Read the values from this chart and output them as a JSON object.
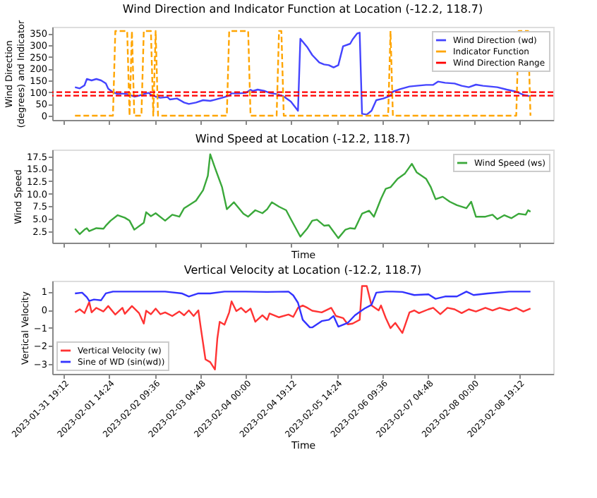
{
  "chart_data": [
    {
      "type": "line",
      "title": "Wind Direction and Indicator Function at Location (-12.2, 118.7)",
      "ylabel": "Wind Direction (degrees) and Indicator",
      "xlim": [
        "2023-01-31T14:24",
        "2023-02-09T09:36"
      ],
      "xticks": [
        {
          "value": "2023-01-31T19:12",
          "label": null
        },
        {
          "value": "2023-02-01T14:24",
          "label": null
        },
        {
          "value": "2023-02-02T09:36",
          "label": null
        },
        {
          "value": "2023-02-03T04:48",
          "label": null
        },
        {
          "value": "2023-02-04T00:00",
          "label": null
        },
        {
          "value": "2023-02-04T19:12",
          "label": null
        },
        {
          "value": "2023-02-05T14:24",
          "label": null
        },
        {
          "value": "2023-02-06T09:36",
          "label": null
        },
        {
          "value": "2023-02-07T04:48",
          "label": null
        },
        {
          "value": "2023-02-08T00:00",
          "label": null
        },
        {
          "value": "2023-02-08T19:12",
          "label": null
        }
      ],
      "ylim": [
        -18,
        378
      ],
      "yticks": [
        0,
        50,
        100,
        150,
        200,
        250,
        300,
        350
      ],
      "tick_labels": "y",
      "grid": false,
      "legend": "top right",
      "ref_lines": [
        {
          "axis": "y",
          "value": 85,
          "label": "Wind Direction Range",
          "color": "#ff0000",
          "line_style": "dashed"
        },
        {
          "axis": "y",
          "value": 100,
          "color": "#ff0000",
          "line_style": "dashed"
        }
      ],
      "series": [
        {
          "name": "Wind Direction (wd)",
          "color": "#4444ff",
          "line_style": "solid",
          "x": [
            "2023-02-01T00:00",
            "2023-02-01T02:00",
            "2023-02-01T04:00",
            "2023-02-01T05:00",
            "2023-02-01T07:00",
            "2023-02-01T09:00",
            "2023-02-01T11:00",
            "2023-02-01T13:00",
            "2023-02-01T14:00",
            "2023-02-01T16:00",
            "2023-02-01T18:00",
            "2023-02-01T20:00",
            "2023-02-01T22:00",
            "2023-02-01T23:00",
            "2023-02-02T01:00",
            "2023-02-02T03:00",
            "2023-02-02T05:00",
            "2023-02-02T07:00",
            "2023-02-02T08:00",
            "2023-02-02T10:00",
            "2023-02-02T12:00",
            "2023-02-02T15:00",
            "2023-02-02T16:00",
            "2023-02-02T19:00",
            "2023-02-02T22:00",
            "2023-02-03T00:00",
            "2023-02-03T03:00",
            "2023-02-03T06:00",
            "2023-02-03T09:00",
            "2023-02-03T11:00",
            "2023-02-03T14:00",
            "2023-02-03T17:00",
            "2023-02-03T18:00",
            "2023-02-03T21:00",
            "2023-02-04T00:00",
            "2023-02-04T02:00",
            "2023-02-04T03:00",
            "2023-02-04T05:00",
            "2023-02-04T08:00",
            "2023-02-04T10:00",
            "2023-02-04T13:00",
            "2023-02-04T16:00",
            "2023-02-04T19:00",
            "2023-02-04T22:00",
            "2023-02-04T23:00",
            "2023-02-05T02:00",
            "2023-02-05T04:00",
            "2023-02-05T07:00",
            "2023-02-05T09:00",
            "2023-02-05T11:00",
            "2023-02-05T13:00",
            "2023-02-05T15:00",
            "2023-02-05T17:00",
            "2023-02-05T20:00",
            "2023-02-05T21:00",
            "2023-02-05T23:00",
            "2023-02-06T00:00",
            "2023-02-06T01:00",
            "2023-02-06T03:00",
            "2023-02-06T05:00",
            "2023-02-06T07:00",
            "2023-02-06T10:00",
            "2023-02-06T13:00",
            "2023-02-06T14:00",
            "2023-02-06T17:00",
            "2023-02-06T21:00",
            "2023-02-07T00:00",
            "2023-02-07T04:00",
            "2023-02-07T07:00",
            "2023-02-07T09:00",
            "2023-02-07T12:00",
            "2023-02-07T16:00",
            "2023-02-07T19:00",
            "2023-02-07T22:00",
            "2023-02-08T01:00",
            "2023-02-08T04:00",
            "2023-02-08T07:00",
            "2023-02-08T10:00",
            "2023-02-08T14:00",
            "2023-02-08T18:00",
            "2023-02-08T21:00",
            "2023-02-09T00:00"
          ],
          "values": [
            121,
            116,
            129,
            156,
            150,
            156,
            150,
            137,
            115,
            100,
            92,
            94,
            92,
            89,
            81,
            85,
            92,
            97,
            89,
            81,
            76,
            79,
            69,
            73,
            56,
            50,
            56,
            66,
            63,
            68,
            76,
            85,
            95,
            95,
            97,
            110,
            105,
            111,
            105,
            97,
            92,
            82,
            60,
            21,
            327,
            290,
            258,
            226,
            218,
            215,
            205,
            215,
            295,
            306,
            324,
            350,
            353,
            8,
            5,
            21,
            66,
            73,
            85,
            102,
            113,
            124,
            127,
            131,
            131,
            145,
            140,
            137,
            127,
            121,
            132,
            127,
            124,
            121,
            111,
            102,
            89,
            82
          ]
        },
        {
          "name": "Indicator Function",
          "color": "#ffa500",
          "line_style": "dashed",
          "x": [
            "2023-02-01T00:00",
            "2023-02-01T16:00",
            "2023-02-01T17:00",
            "2023-02-01T22:00",
            "2023-02-01T23:00",
            "2023-02-02T00:00",
            "2023-02-02T01:00",
            "2023-02-02T04:00",
            "2023-02-02T05:00",
            "2023-02-02T08:00",
            "2023-02-02T09:00",
            "2023-02-02T10:00",
            "2023-02-02T11:00",
            "2023-02-03T16:00",
            "2023-02-03T17:00",
            "2023-02-04T01:00",
            "2023-02-04T02:00",
            "2023-02-04T13:00",
            "2023-02-04T14:00",
            "2023-02-04T15:00",
            "2023-02-04T16:00",
            "2023-02-06T12:00",
            "2023-02-06T13:00",
            "2023-02-06T14:00",
            "2023-02-08T18:00",
            "2023-02-08T19:00",
            "2023-02-08T23:00",
            "2023-02-09T00:00"
          ],
          "values": [
            0,
            0,
            360,
            360,
            0,
            360,
            0,
            0,
            360,
            360,
            0,
            360,
            0,
            0,
            360,
            360,
            0,
            0,
            360,
            360,
            0,
            0,
            360,
            0,
            0,
            360,
            360,
            0
          ]
        }
      ]
    },
    {
      "type": "line",
      "title": "Wind Speed at Location (-12.2, 118.7)",
      "xlabel": "Time",
      "ylabel": "Wind Speed",
      "xlim": [
        "2023-01-31T14:24",
        "2023-02-09T09:36"
      ],
      "xticks": [
        {
          "value": "2023-01-31T19:12",
          "label": null
        },
        {
          "value": "2023-02-01T14:24",
          "label": null
        },
        {
          "value": "2023-02-02T09:36",
          "label": null
        },
        {
          "value": "2023-02-03T04:48",
          "label": null
        },
        {
          "value": "2023-02-04T00:00",
          "label": null
        },
        {
          "value": "2023-02-04T19:12",
          "label": null
        },
        {
          "value": "2023-02-05T14:24",
          "label": null
        },
        {
          "value": "2023-02-06T09:36",
          "label": null
        },
        {
          "value": "2023-02-07T04:48",
          "label": null
        },
        {
          "value": "2023-02-08T00:00",
          "label": null
        },
        {
          "value": "2023-02-08T19:12",
          "label": null
        }
      ],
      "ylim": [
        0.2,
        18.85
      ],
      "yticks": [
        2.5,
        {
          "value": 5,
          "label": "5.0"
        },
        7.5,
        {
          "value": 10,
          "label": "10.0"
        },
        12.5,
        {
          "value": 15,
          "label": "15.0"
        },
        17.5
      ],
      "tick_labels": "y",
      "grid": false,
      "legend": "top right",
      "series": [
        {
          "name": "Wind Speed (ws)",
          "color": "#3aa83a",
          "line_style": "solid",
          "x": [
            "2023-02-01T00:00",
            "2023-02-01T02:00",
            "2023-02-01T04:00",
            "2023-02-01T05:00",
            "2023-02-01T06:00",
            "2023-02-01T09:00",
            "2023-02-01T12:00",
            "2023-02-01T13:00",
            "2023-02-01T15:00",
            "2023-02-01T18:00",
            "2023-02-01T21:00",
            "2023-02-01T23:00",
            "2023-02-02T01:00",
            "2023-02-02T05:00",
            "2023-02-02T06:00",
            "2023-02-02T08:00",
            "2023-02-02T10:00",
            "2023-02-02T14:00",
            "2023-02-02T17:00",
            "2023-02-02T20:00",
            "2023-02-02T22:00",
            "2023-02-03T00:00",
            "2023-02-03T03:00",
            "2023-02-03T06:00",
            "2023-02-03T08:00",
            "2023-02-03T09:00",
            "2023-02-03T11:00",
            "2023-02-03T14:00",
            "2023-02-03T16:00",
            "2023-02-03T19:00",
            "2023-02-03T23:00",
            "2023-02-04T01:00",
            "2023-02-04T04:00",
            "2023-02-04T07:00",
            "2023-02-04T09:00",
            "2023-02-04T11:00",
            "2023-02-04T14:00",
            "2023-02-04T17:00",
            "2023-02-04T19:00",
            "2023-02-04T23:00",
            "2023-02-05T02:00",
            "2023-02-05T04:00",
            "2023-02-05T06:00",
            "2023-02-05T09:00",
            "2023-02-05T11:00",
            "2023-02-05T15:00",
            "2023-02-05T18:00",
            "2023-02-05T20:00",
            "2023-02-05T22:00",
            "2023-02-06T01:00",
            "2023-02-06T04:00",
            "2023-02-06T06:00",
            "2023-02-06T09:00",
            "2023-02-06T11:00",
            "2023-02-06T13:00",
            "2023-02-06T16:00",
            "2023-02-06T19:00",
            "2023-02-06T22:00",
            "2023-02-07T00:00",
            "2023-02-07T04:00",
            "2023-02-07T06:00",
            "2023-02-07T08:00",
            "2023-02-07T11:00",
            "2023-02-07T14:00",
            "2023-02-07T17:00",
            "2023-02-07T21:00",
            "2023-02-07T23:00",
            "2023-02-08T01:00",
            "2023-02-08T05:00",
            "2023-02-08T08:00",
            "2023-02-08T10:00",
            "2023-02-08T13:00",
            "2023-02-08T16:00",
            "2023-02-08T19:00",
            "2023-02-08T22:00",
            "2023-02-08T23:00",
            "2023-02-09T00:00"
          ],
          "values": [
            3.0,
            1.9,
            2.8,
            3.1,
            2.5,
            3.1,
            3.0,
            3.6,
            4.6,
            5.7,
            5.2,
            4.6,
            2.8,
            4.2,
            6.3,
            5.5,
            6.1,
            4.6,
            5.8,
            5.4,
            7.1,
            7.7,
            8.6,
            10.7,
            13.6,
            17.9,
            15.2,
            11.3,
            6.9,
            8.3,
            6.0,
            5.4,
            6.7,
            6.1,
            6.9,
            8.3,
            7.4,
            6.7,
            4.9,
            1.4,
            3.1,
            4.6,
            4.8,
            3.6,
            3.7,
            1.1,
            2.8,
            3.1,
            3.0,
            6.0,
            6.6,
            5.4,
            9.0,
            11.0,
            11.3,
            13.0,
            14.0,
            16.0,
            14.3,
            13.0,
            11.3,
            8.9,
            9.4,
            8.4,
            7.7,
            7.1,
            8.4,
            5.4,
            5.4,
            5.8,
            4.9,
            5.7,
            5.1,
            6.0,
            5.8,
            6.7,
            6.4
          ]
        }
      ]
    },
    {
      "type": "line",
      "title": "Vertical Velocity at Location (-12.2, 118.7)",
      "xlabel": "Time",
      "ylabel": "Vertical Velocity",
      "xlim": [
        "2023-01-31T14:24",
        "2023-02-09T09:36"
      ],
      "xticks": [
        {
          "value": "2023-01-31T19:12",
          "label": "2023-01-31 19:12"
        },
        {
          "value": "2023-02-01T14:24",
          "label": "2023-02-01 14:24"
        },
        {
          "value": "2023-02-02T09:36",
          "label": "2023-02-02 09:36"
        },
        {
          "value": "2023-02-03T04:48",
          "label": "2023-02-03 04:48"
        },
        {
          "value": "2023-02-04T00:00",
          "label": "2023-02-04 00:00"
        },
        {
          "value": "2023-02-04T19:12",
          "label": "2023-02-04 19:12"
        },
        {
          "value": "2023-02-05T14:24",
          "label": "2023-02-05 14:24"
        },
        {
          "value": "2023-02-06T09:36",
          "label": "2023-02-06 09:36"
        },
        {
          "value": "2023-02-07T04:48",
          "label": "2023-02-07 04:48"
        },
        {
          "value": "2023-02-08T00:00",
          "label": "2023-02-08 00:00"
        },
        {
          "value": "2023-02-08T19:12",
          "label": "2023-02-08 19:12"
        }
      ],
      "ylim": [
        -3.55,
        1.6
      ],
      "yticks": [
        {
          "value": -3,
          "label": "−3"
        },
        {
          "value": -2,
          "label": "−2"
        },
        {
          "value": -1,
          "label": "−1"
        },
        0,
        1
      ],
      "grid": false,
      "legend": "bottom left",
      "series": [
        {
          "name": "Vertical Velocity (w)",
          "color": "#ff3333",
          "line_style": "solid",
          "x": [
            "2023-02-01T00:00",
            "2023-02-01T02:00",
            "2023-02-01T04:00",
            "2023-02-01T06:00",
            "2023-02-01T07:00",
            "2023-02-01T09:00",
            "2023-02-01T12:00",
            "2023-02-01T14:00",
            "2023-02-01T17:00",
            "2023-02-01T20:00",
            "2023-02-01T21:00",
            "2023-02-02T00:00",
            "2023-02-02T03:00",
            "2023-02-02T05:00",
            "2023-02-02T06:00",
            "2023-02-02T08:00",
            "2023-02-02T10:00",
            "2023-02-02T12:00",
            "2023-02-02T14:00",
            "2023-02-02T17:00",
            "2023-02-02T20:00",
            "2023-02-02T22:00",
            "2023-02-03T00:00",
            "2023-02-03T02:00",
            "2023-02-03T04:00",
            "2023-02-03T05:00",
            "2023-02-03T07:00",
            "2023-02-03T09:00",
            "2023-02-03T11:00",
            "2023-02-03T12:00",
            "2023-02-03T13:00",
            "2023-02-03T15:00",
            "2023-02-03T17:00",
            "2023-02-03T18:00",
            "2023-02-03T20:00",
            "2023-02-03T22:00",
            "2023-02-04T00:00",
            "2023-02-04T02:00",
            "2023-02-04T04:00",
            "2023-02-04T07:00",
            "2023-02-04T09:00",
            "2023-02-04T10:00",
            "2023-02-04T14:00",
            "2023-02-04T18:00",
            "2023-02-04T20:00",
            "2023-02-04T22:00",
            "2023-02-05T00:00",
            "2023-02-05T02:00",
            "2023-02-05T04:00",
            "2023-02-05T08:00",
            "2023-02-05T12:00",
            "2023-02-05T14:00",
            "2023-02-05T17:00",
            "2023-02-05T19:00",
            "2023-02-05T21:00",
            "2023-02-06T00:00",
            "2023-02-06T01:00",
            "2023-02-06T03:00",
            "2023-02-06T05:00",
            "2023-02-06T08:00",
            "2023-02-06T09:00",
            "2023-02-06T11:00",
            "2023-02-06T13:00",
            "2023-02-06T15:00",
            "2023-02-06T18:00",
            "2023-02-06T21:00",
            "2023-02-06T23:00",
            "2023-02-07T01:00",
            "2023-02-07T05:00",
            "2023-02-07T07:00",
            "2023-02-07T10:00",
            "2023-02-07T13:00",
            "2023-02-07T16:00",
            "2023-02-07T19:00",
            "2023-02-07T22:00",
            "2023-02-08T01:00",
            "2023-02-08T05:00",
            "2023-02-08T08:00",
            "2023-02-08T11:00",
            "2023-02-08T15:00",
            "2023-02-08T18:00",
            "2023-02-08T21:00",
            "2023-02-09T00:00"
          ],
          "values": [
            -0.15,
            0.02,
            -0.19,
            0.42,
            -0.15,
            0.1,
            -0.1,
            0.2,
            -0.27,
            0.1,
            -0.23,
            0.2,
            -0.19,
            -0.77,
            -0.06,
            -0.25,
            0.06,
            -0.25,
            -0.15,
            -0.35,
            -0.1,
            -0.31,
            -0.04,
            -0.35,
            -0.04,
            -0.98,
            -2.75,
            -2.9,
            -3.31,
            -1.6,
            -0.67,
            -0.83,
            -0.15,
            0.46,
            -0.08,
            0.1,
            -0.15,
            0.06,
            -0.67,
            -0.31,
            -0.56,
            -0.21,
            -0.42,
            -0.27,
            -0.4,
            0.1,
            0.23,
            0.1,
            -0.06,
            -0.15,
            0.1,
            -0.35,
            -0.46,
            -0.81,
            -0.77,
            -0.56,
            1.31,
            1.31,
            0.23,
            -0.04,
            0.23,
            -0.46,
            -1.02,
            -0.73,
            -1.29,
            -0.15,
            -0.04,
            -0.19,
            0.02,
            0.1,
            -0.25,
            0.1,
            0.02,
            -0.19,
            0.02,
            -0.1,
            0.1,
            -0.04,
            0.1,
            -0.04,
            0.1,
            -0.1,
            0.06
          ]
        },
        {
          "name": "Sine of WD (sin(wd))",
          "color": "#3333ff",
          "line_style": "solid",
          "x": [
            "2023-02-01T00:00",
            "2023-02-01T03:00",
            "2023-02-01T05:00",
            "2023-02-01T06:00",
            "2023-02-01T08:00",
            "2023-02-01T11:00",
            "2023-02-01T13:00",
            "2023-02-01T16:00",
            "2023-02-01T23:00",
            "2023-02-02T07:00",
            "2023-02-02T14:00",
            "2023-02-02T21:00",
            "2023-02-03T00:00",
            "2023-02-03T04:00",
            "2023-02-03T09:00",
            "2023-02-03T15:00",
            "2023-02-04T00:00",
            "2023-02-04T09:00",
            "2023-02-04T18:00",
            "2023-02-04T20:00",
            "2023-02-04T22:00",
            "2023-02-05T00:00",
            "2023-02-05T03:00",
            "2023-02-05T04:00",
            "2023-02-05T08:00",
            "2023-02-05T11:00",
            "2023-02-05T13:00",
            "2023-02-05T15:00",
            "2023-02-05T19:00",
            "2023-02-05T22:00",
            "2023-02-06T02:00",
            "2023-02-06T05:00",
            "2023-02-06T07:00",
            "2023-02-06T11:00",
            "2023-02-06T14:00",
            "2023-02-06T18:00",
            "2023-02-06T23:00",
            "2023-02-07T05:00",
            "2023-02-07T08:00",
            "2023-02-07T12:00",
            "2023-02-07T17:00",
            "2023-02-07T21:00",
            "2023-02-08T00:00",
            "2023-02-08T06:00",
            "2023-02-08T15:00",
            "2023-02-09T00:00"
          ],
          "values": [
            0.9,
            0.94,
            0.69,
            0.48,
            0.56,
            0.52,
            0.9,
            1.0,
            1.0,
            1.0,
            1.0,
            0.9,
            0.73,
            0.9,
            0.9,
            1.0,
            1.0,
            0.98,
            1.0,
            0.79,
            0.38,
            -0.56,
            -0.98,
            -0.98,
            -0.63,
            -0.56,
            -0.35,
            -0.94,
            -0.73,
            -0.31,
            0.06,
            0.27,
            0.94,
            1.0,
            1.0,
            0.98,
            0.81,
            0.85,
            0.6,
            0.73,
            0.73,
            1.0,
            0.81,
            0.9,
            1.0,
            1.0
          ]
        }
      ]
    }
  ]
}
